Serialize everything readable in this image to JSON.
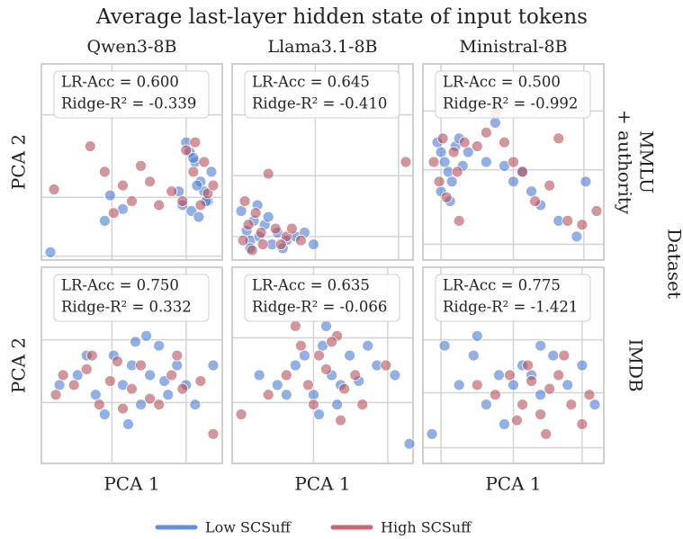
{
  "title": "Average last-layer hidden state of input tokens",
  "row_group_label": "Dataset",
  "legend": [
    {
      "name": "Low SCSuff",
      "color": "#4a7bd0"
    },
    {
      "name": "High SCSuff",
      "color": "#b5505a"
    }
  ],
  "chart_data": [
    {
      "type": "scatter",
      "title": "Qwen3-8B",
      "ylabel": "PCA 2",
      "annotations": [
        "LR-Acc = 0.600",
        "Ridge-R² = -0.339"
      ],
      "xlim": [
        0,
        100
      ],
      "ylim": [
        0,
        100
      ],
      "xticks": [
        39,
        80
      ],
      "yticks": [
        2,
        32,
        74
      ],
      "grid": true,
      "series": [
        {
          "x": [
            5,
            38,
            35,
            45,
            80,
            82,
            85,
            88,
            90,
            92,
            78,
            83,
            87,
            91,
            94,
            86,
            76,
            84
          ],
          "values": [
            4,
            33,
            20,
            26,
            60,
            55,
            50,
            40,
            35,
            30,
            28,
            25,
            22,
            30,
            45,
            38,
            35,
            52
          ]
        },
        {
          "x": [
            7,
            27,
            40,
            45,
            50,
            55,
            60,
            72,
            80,
            85,
            88,
            92,
            84,
            95,
            78,
            35,
            65,
            90
          ],
          "values": [
            36,
            58,
            24,
            38,
            30,
            48,
            40,
            35,
            56,
            60,
            28,
            34,
            45,
            38,
            30,
            45,
            28,
            50
          ]
        }
      ]
    },
    {
      "type": "scatter",
      "title": "Llama3.1-8B",
      "annotations": [
        "LR-Acc = 0.645",
        "Ridge-R² = -0.410"
      ],
      "xlim": [
        0,
        100
      ],
      "ylim": [
        0,
        100
      ],
      "xticks": [
        46,
        92
      ],
      "yticks": [
        12,
        43,
        74
      ],
      "grid": true,
      "series": [
        {
          "x": [
            5,
            8,
            10,
            12,
            15,
            18,
            22,
            25,
            30,
            35,
            45,
            10,
            20,
            28,
            14,
            40
          ],
          "values": [
            25,
            15,
            10,
            20,
            12,
            18,
            8,
            14,
            10,
            12,
            8,
            6,
            22,
            6,
            28,
            14
          ]
        },
        {
          "x": [
            20,
            96,
            6,
            9,
            13,
            17,
            24,
            30,
            38,
            7,
            16,
            27,
            11,
            33
          ],
          "values": [
            44,
            50,
            10,
            18,
            24,
            8,
            16,
            12,
            10,
            30,
            14,
            8,
            5,
            16
          ]
        }
      ]
    },
    {
      "type": "scatter",
      "title": "Ministral-8B",
      "row_label": [
        "MMLU",
        "+ authority"
      ],
      "annotations": [
        "LR-Acc = 0.500",
        "Ridge-R² = -0.992"
      ],
      "xlim": [
        0,
        100
      ],
      "ylim": [
        0,
        100
      ],
      "xticks": [
        10,
        50,
        89
      ],
      "yticks": [
        8,
        46,
        76
      ],
      "grid": true,
      "series": [
        {
          "x": [
            8,
            10,
            12,
            14,
            16,
            18,
            20,
            22,
            10,
            15,
            25,
            35,
            45,
            55,
            60,
            65,
            75,
            85,
            40,
            50,
            90
          ],
          "values": [
            60,
            55,
            50,
            45,
            40,
            58,
            62,
            48,
            35,
            30,
            55,
            50,
            48,
            45,
            35,
            28,
            20,
            12,
            70,
            40,
            40
          ]
        },
        {
          "x": [
            6,
            9,
            11,
            13,
            17,
            19,
            23,
            30,
            40,
            45,
            50,
            55,
            62,
            70,
            80,
            88,
            96,
            20,
            35,
            75
          ],
          "values": [
            50,
            40,
            62,
            32,
            55,
            45,
            60,
            58,
            75,
            60,
            50,
            45,
            30,
            38,
            20,
            18,
            25,
            20,
            65,
            62
          ]
        }
      ]
    },
    {
      "type": "scatter",
      "ylabel": "PCA 2",
      "xlabel": "PCA 1",
      "annotations": [
        "LR-Acc = 0.750",
        "Ridge-R² = 0.332"
      ],
      "xlim": [
        0,
        100
      ],
      "ylim": [
        0,
        100
      ],
      "xticks": [
        39,
        80
      ],
      "yticks": [
        31,
        63
      ],
      "grid": true,
      "series": [
        {
          "x": [
            10,
            20,
            30,
            40,
            45,
            50,
            55,
            60,
            65,
            70,
            75,
            80,
            85,
            95,
            35,
            48,
            58,
            68,
            25,
            52
          ],
          "values": [
            40,
            45,
            35,
            55,
            40,
            50,
            30,
            45,
            60,
            35,
            50,
            40,
            30,
            50,
            25,
            20,
            65,
            42,
            55,
            62
          ]
        },
        {
          "x": [
            8,
            12,
            18,
            25,
            32,
            38,
            42,
            50,
            55,
            60,
            72,
            78,
            88,
            95,
            28,
            45,
            65,
            75
          ],
          "values": [
            35,
            45,
            40,
            48,
            30,
            42,
            52,
            38,
            50,
            33,
            45,
            38,
            42,
            15,
            55,
            28,
            30,
            55
          ]
        }
      ]
    },
    {
      "type": "scatter",
      "xlabel": "PCA 1",
      "annotations": [
        "LR-Acc = 0.635",
        "Ridge-R² = -0.066"
      ],
      "xlim": [
        0,
        100
      ],
      "ylim": [
        0,
        100
      ],
      "xticks": [
        45,
        86
      ],
      "yticks": [
        31,
        64
      ],
      "grid": true,
      "series": [
        {
          "x": [
            15,
            25,
            35,
            40,
            45,
            50,
            55,
            60,
            65,
            70,
            80,
            90,
            98,
            48,
            52,
            58,
            30,
            75
          ],
          "values": [
            45,
            40,
            50,
            55,
            35,
            60,
            45,
            40,
            55,
            42,
            50,
            45,
            10,
            25,
            70,
            30,
            35,
            60
          ]
        },
        {
          "x": [
            5,
            20,
            30,
            38,
            42,
            48,
            52,
            58,
            62,
            68,
            72,
            85,
            45,
            55,
            35,
            60
          ],
          "values": [
            25,
            35,
            45,
            60,
            40,
            55,
            48,
            65,
            38,
            45,
            30,
            50,
            30,
            62,
            70,
            22
          ]
        }
      ]
    },
    {
      "type": "scatter",
      "xlabel": "PCA 1",
      "row_label": [
        "IMDB"
      ],
      "annotations": [
        "LR-Acc = 0.775",
        "Ridge-R² = -1.421"
      ],
      "xlim": [
        0,
        100
      ],
      "ylim": [
        0,
        100
      ],
      "xticks": [
        10,
        50,
        88
      ],
      "yticks": [
        8,
        36,
        63
      ],
      "grid": true,
      "series": [
        {
          "x": [
            5,
            12,
            20,
            28,
            35,
            42,
            50,
            55,
            60,
            65,
            72,
            80,
            88,
            95,
            45,
            30,
            65
          ],
          "values": [
            15,
            60,
            40,
            55,
            30,
            45,
            40,
            50,
            45,
            35,
            55,
            40,
            50,
            30,
            20,
            65,
            60
          ]
        },
        {
          "x": [
            30,
            40,
            48,
            55,
            60,
            65,
            70,
            75,
            82,
            88,
            92,
            58,
            68,
            78,
            52
          ],
          "values": [
            40,
            35,
            45,
            30,
            42,
            25,
            38,
            45,
            30,
            20,
            35,
            50,
            15,
            55,
            22
          ]
        }
      ]
    }
  ]
}
